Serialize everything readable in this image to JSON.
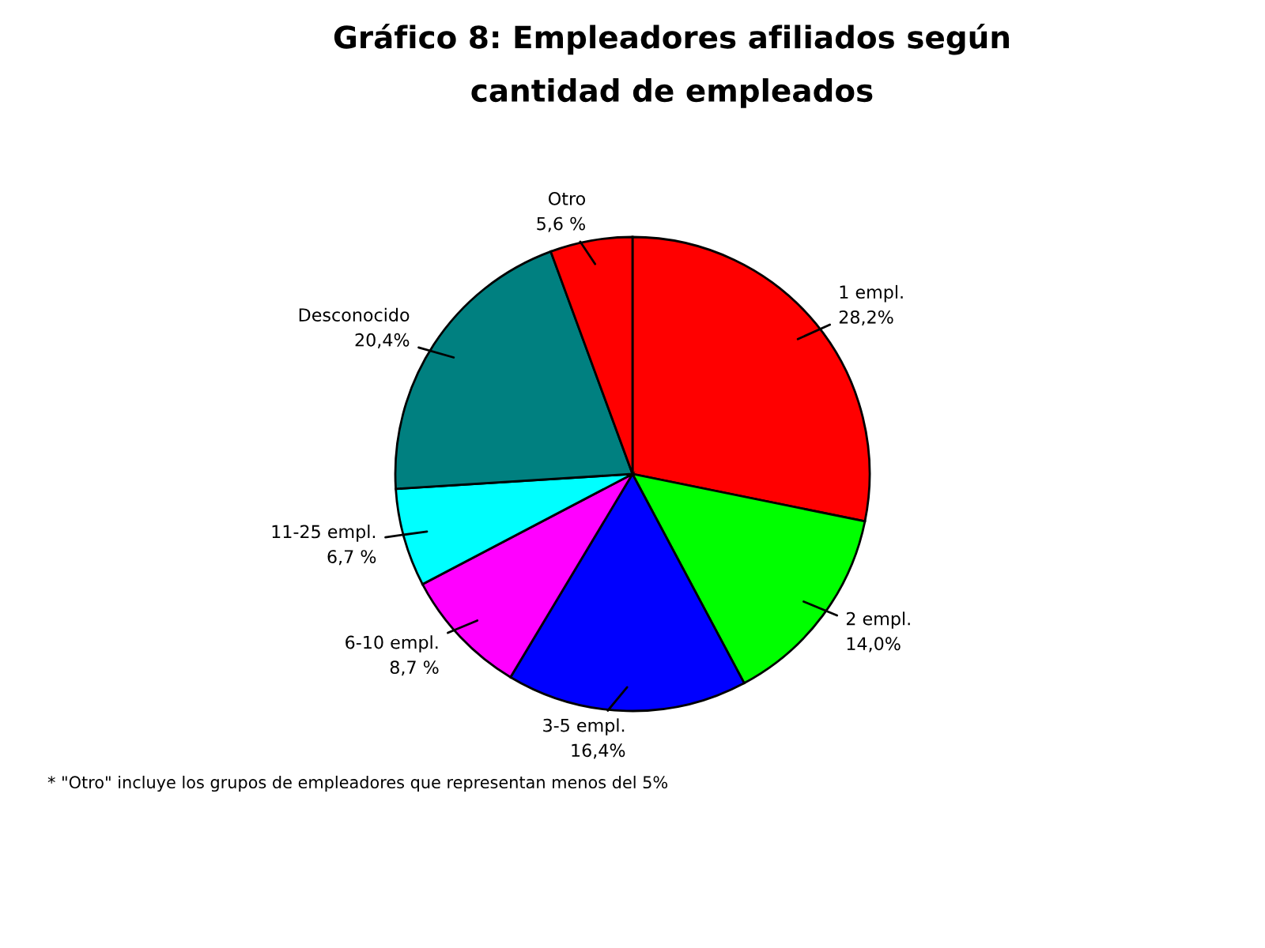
{
  "chart_data": {
    "type": "pie",
    "title": "Gráfico 8: Empleadores afiliados según\ncantidad de empleados",
    "categories": [
      "1 empl.",
      "2 empl.",
      "3-5 empl.",
      "6-10 empl.",
      "11-25 empl.",
      "Desconocido",
      "Otro"
    ],
    "values": [
      28.2,
      14.0,
      16.4,
      8.7,
      6.7,
      20.4,
      5.6
    ],
    "value_labels": [
      "28,2%",
      "14,0%",
      "16,4%",
      "8,7 %",
      "6,7 %",
      "20,4%",
      "5,6 %"
    ],
    "colors": [
      "#ff0000",
      "#00ff00",
      "#0000ff",
      "#ff00ff",
      "#00ffff",
      "#008080",
      "#ff0000"
    ],
    "annotations": [
      "* \"Otro\" incluye los grupos de empleadores que representan menos del 5%"
    ]
  }
}
